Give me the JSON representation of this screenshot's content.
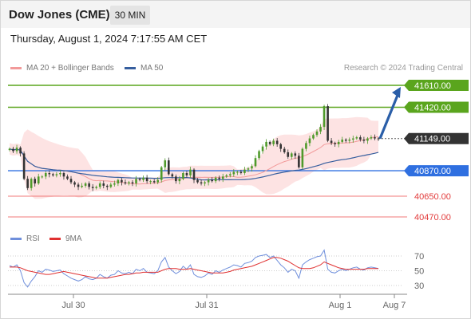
{
  "header": {
    "title": "Dow Jones (CME)",
    "timeframe": "30 MIN"
  },
  "datetime": "Thursday, August 1, 2024 7:17:55 AM CET",
  "credit": "Research © 2024 Trading Central",
  "colors": {
    "target": "#5aa51d",
    "last": "#333333",
    "pivot": "#2f6fe0",
    "support": "#f07a7a",
    "ma50": "#365e9e",
    "ma20": "#f29a9a",
    "band_fill": "#fde3e3",
    "up_candle": "#4f9a2b",
    "down_candle": "#333333",
    "rsi": "#6f8fdc",
    "rsi_ma": "#e03030",
    "arrow": "#2a5ea8"
  },
  "chart_data": [
    {
      "type": "candlestick",
      "title": "",
      "x_tick_labels": [
        "Jul 30",
        "Jul 31",
        "Aug 1",
        "Aug 7"
      ],
      "ylim": [
        40400,
        41700
      ],
      "legend": [
        {
          "label": "MA 20 + Bollinger Bands",
          "color": "#f29a9a"
        },
        {
          "label": "MA 50",
          "color": "#365e9e"
        }
      ],
      "price_levels": [
        {
          "label": "41610.00",
          "value": 41610,
          "kind": "target"
        },
        {
          "label": "41420.00",
          "value": 41420,
          "kind": "target"
        },
        {
          "label": "41149.00",
          "value": 41149,
          "kind": "last"
        },
        {
          "label": "40870.00",
          "value": 40870,
          "kind": "pivot"
        },
        {
          "label": "40650.00",
          "value": 40650,
          "kind": "support"
        },
        {
          "label": "40470.00",
          "value": 40470,
          "kind": "support"
        }
      ],
      "forecast_arrow": {
        "from": 41149,
        "to": 41610
      },
      "close_series": [
        41060,
        41040,
        41070,
        41020,
        40800,
        40720,
        40800,
        40760,
        40820,
        40820,
        40850,
        40840,
        40830,
        40840,
        40850,
        40820,
        40800,
        40770,
        40750,
        40730,
        40740,
        40760,
        40730,
        40720,
        40730,
        40760,
        40740,
        40730,
        40750,
        40760,
        40790,
        40770,
        40760,
        40770,
        40760,
        40800,
        40790,
        40810,
        40780,
        40780,
        40770,
        40790,
        40900,
        40960,
        40840,
        40820,
        40780,
        40800,
        40850,
        40830,
        40880,
        40790,
        40770,
        40760,
        40770,
        40790,
        40780,
        40810,
        40800,
        40820,
        40830,
        40840,
        40860,
        40860,
        40850,
        40880,
        40890,
        40910,
        40980,
        41040,
        41080,
        41120,
        41100,
        41130,
        41100,
        41060,
        41030,
        40990,
        41020,
        41000,
        40900,
        41060,
        41110,
        41150,
        41180,
        41210,
        41250,
        41430,
        41130,
        41110,
        41100,
        41120,
        41140,
        41130,
        41140,
        41150,
        41160,
        41140,
        41130,
        41150,
        41160,
        41150,
        41149
      ]
    },
    {
      "type": "line",
      "title": "",
      "legend": [
        {
          "label": "RSI",
          "color": "#6f8fdc"
        },
        {
          "label": "9MA",
          "color": "#e03030"
        }
      ],
      "ylim": [
        20,
        80
      ],
      "y_ticks": [
        70,
        50,
        30
      ],
      "series": [
        {
          "name": "RSI",
          "values": [
            57,
            55,
            58,
            50,
            34,
            28,
            36,
            42,
            50,
            48,
            52,
            51,
            49,
            50,
            51,
            46,
            43,
            40,
            38,
            36,
            38,
            42,
            39,
            38,
            40,
            45,
            42,
            40,
            44,
            45,
            50,
            47,
            46,
            48,
            46,
            52,
            50,
            53,
            48,
            47,
            46,
            50,
            62,
            68,
            55,
            50,
            46,
            49,
            56,
            52,
            58,
            45,
            42,
            41,
            43,
            47,
            45,
            50,
            48,
            51,
            53,
            55,
            58,
            57,
            55,
            60,
            61,
            63,
            68,
            70,
            71,
            72,
            68,
            70,
            64,
            58,
            54,
            48,
            52,
            50,
            40,
            58,
            62,
            65,
            67,
            69,
            70,
            78,
            52,
            48,
            47,
            50,
            52,
            50,
            52,
            54,
            55,
            52,
            51,
            54,
            55,
            54,
            53
          ]
        },
        {
          "name": "9MA",
          "values": [
            55,
            55,
            55,
            54,
            52,
            50,
            49,
            48,
            47,
            46,
            45,
            45,
            46,
            47,
            48,
            49,
            48,
            47,
            46,
            45,
            44,
            43,
            42,
            41,
            40,
            40,
            40,
            40,
            41,
            42,
            43,
            44,
            45,
            45,
            46,
            47,
            47,
            48,
            48,
            48,
            48,
            48,
            50,
            52,
            53,
            53,
            53,
            52,
            52,
            52,
            53,
            52,
            51,
            50,
            49,
            48,
            47,
            47,
            47,
            47,
            48,
            49,
            51,
            52,
            53,
            54,
            55,
            56,
            58,
            60,
            62,
            64,
            66,
            68,
            68,
            67,
            65,
            63,
            60,
            57,
            54,
            53,
            53,
            53,
            54,
            56,
            58,
            62,
            60,
            58,
            56,
            54,
            53,
            52,
            52,
            52,
            52,
            52,
            52,
            53,
            53,
            53,
            53
          ]
        }
      ]
    }
  ]
}
